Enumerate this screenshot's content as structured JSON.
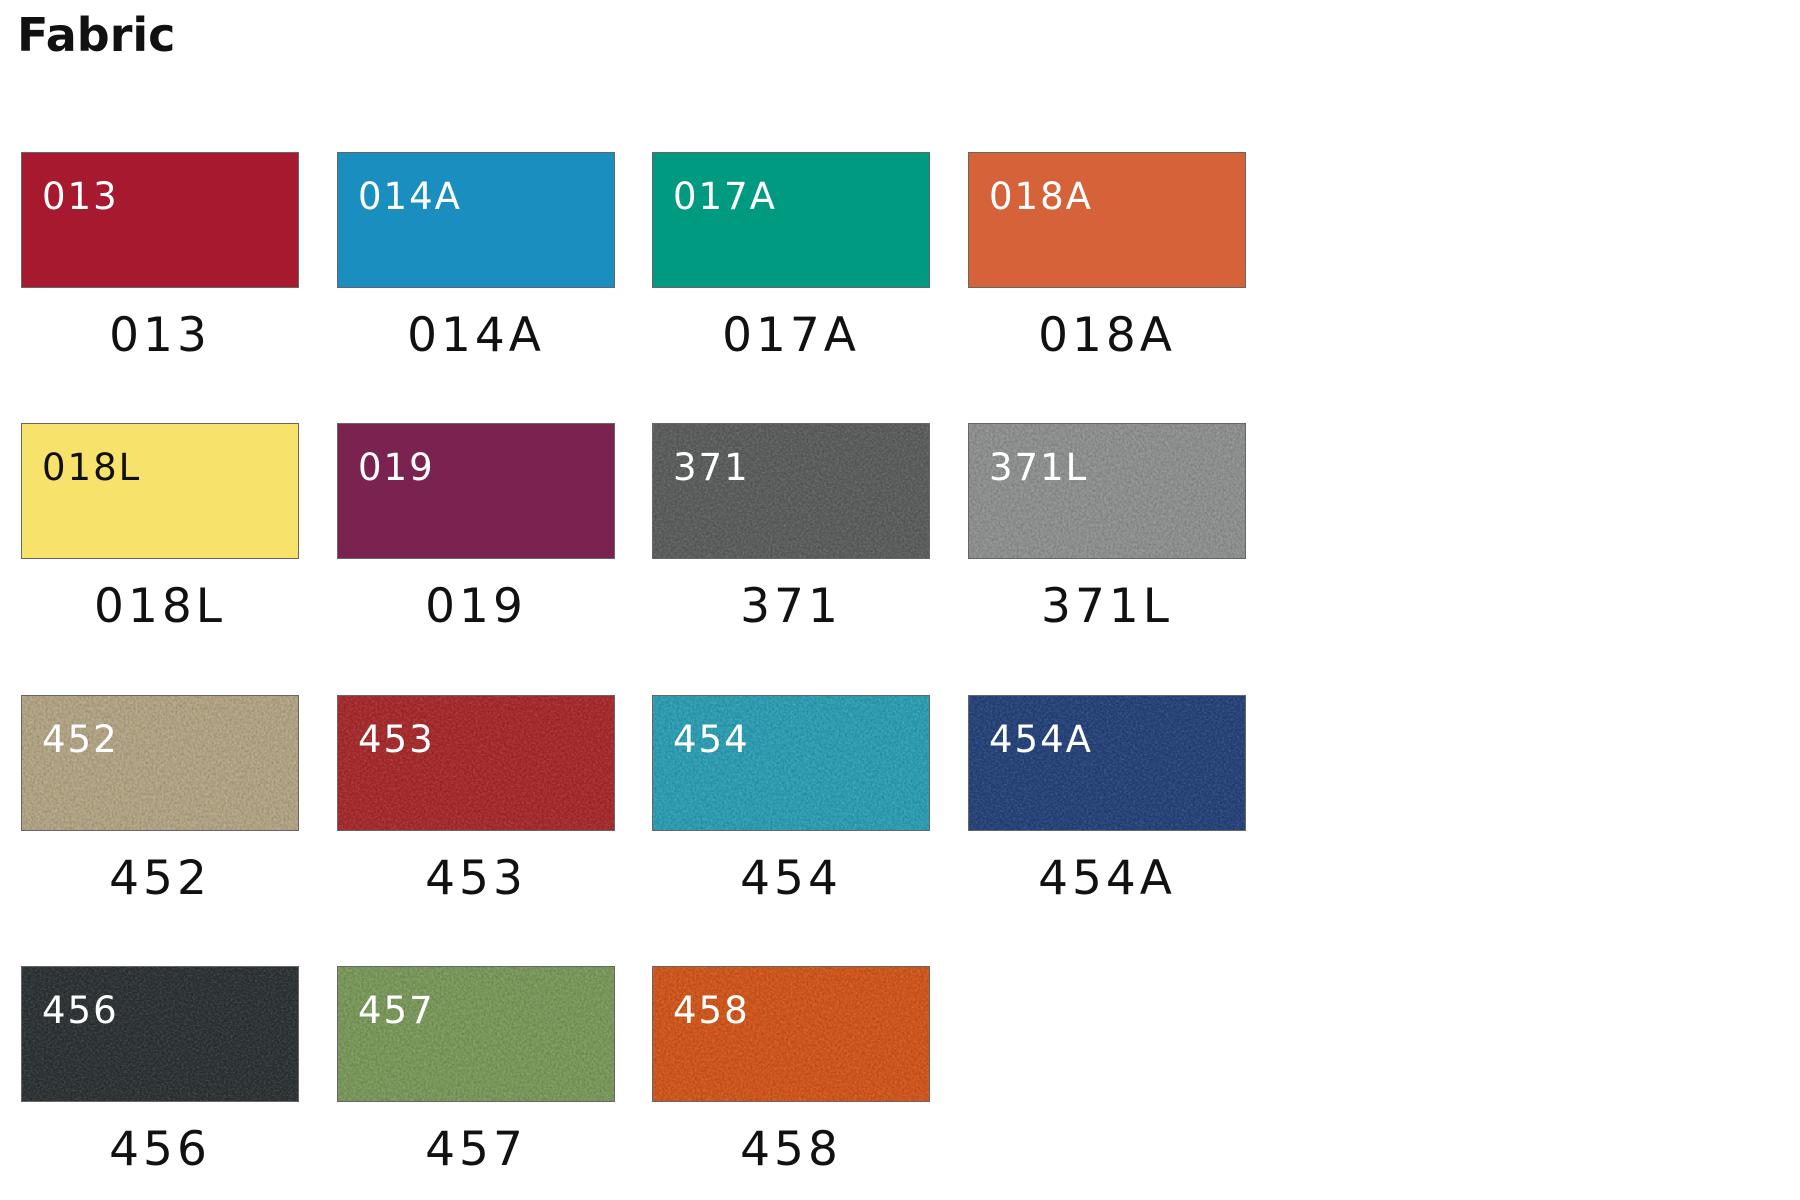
{
  "title": "Fabric",
  "swatches": [
    {
      "code": "013",
      "color": "#a6192e",
      "textured": false
    },
    {
      "code": "014A",
      "color": "#1a8fbf",
      "textured": false
    },
    {
      "code": "017A",
      "color": "#009a80",
      "textured": false
    },
    {
      "code": "018A",
      "color": "#d6623a",
      "textured": false
    },
    {
      "code": "018L",
      "color": "#f7e36b",
      "textured": false
    },
    {
      "code": "019",
      "color": "#7a2350",
      "textured": false
    },
    {
      "code": "371",
      "color": "#5b5d5c",
      "textured": true
    },
    {
      "code": "371L",
      "color": "#8f9290",
      "textured": true
    },
    {
      "code": "452",
      "color": "#b5a685",
      "textured": true
    },
    {
      "code": "453",
      "color": "#a8282a",
      "textured": true
    },
    {
      "code": "454",
      "color": "#2a9fb5",
      "textured": true
    },
    {
      "code": "454A",
      "color": "#23417a",
      "textured": true
    },
    {
      "code": "456",
      "color": "#2b3133",
      "textured": true
    },
    {
      "code": "457",
      "color": "#7a9a5a",
      "textured": true
    },
    {
      "code": "458",
      "color": "#d55518",
      "textured": true
    }
  ]
}
